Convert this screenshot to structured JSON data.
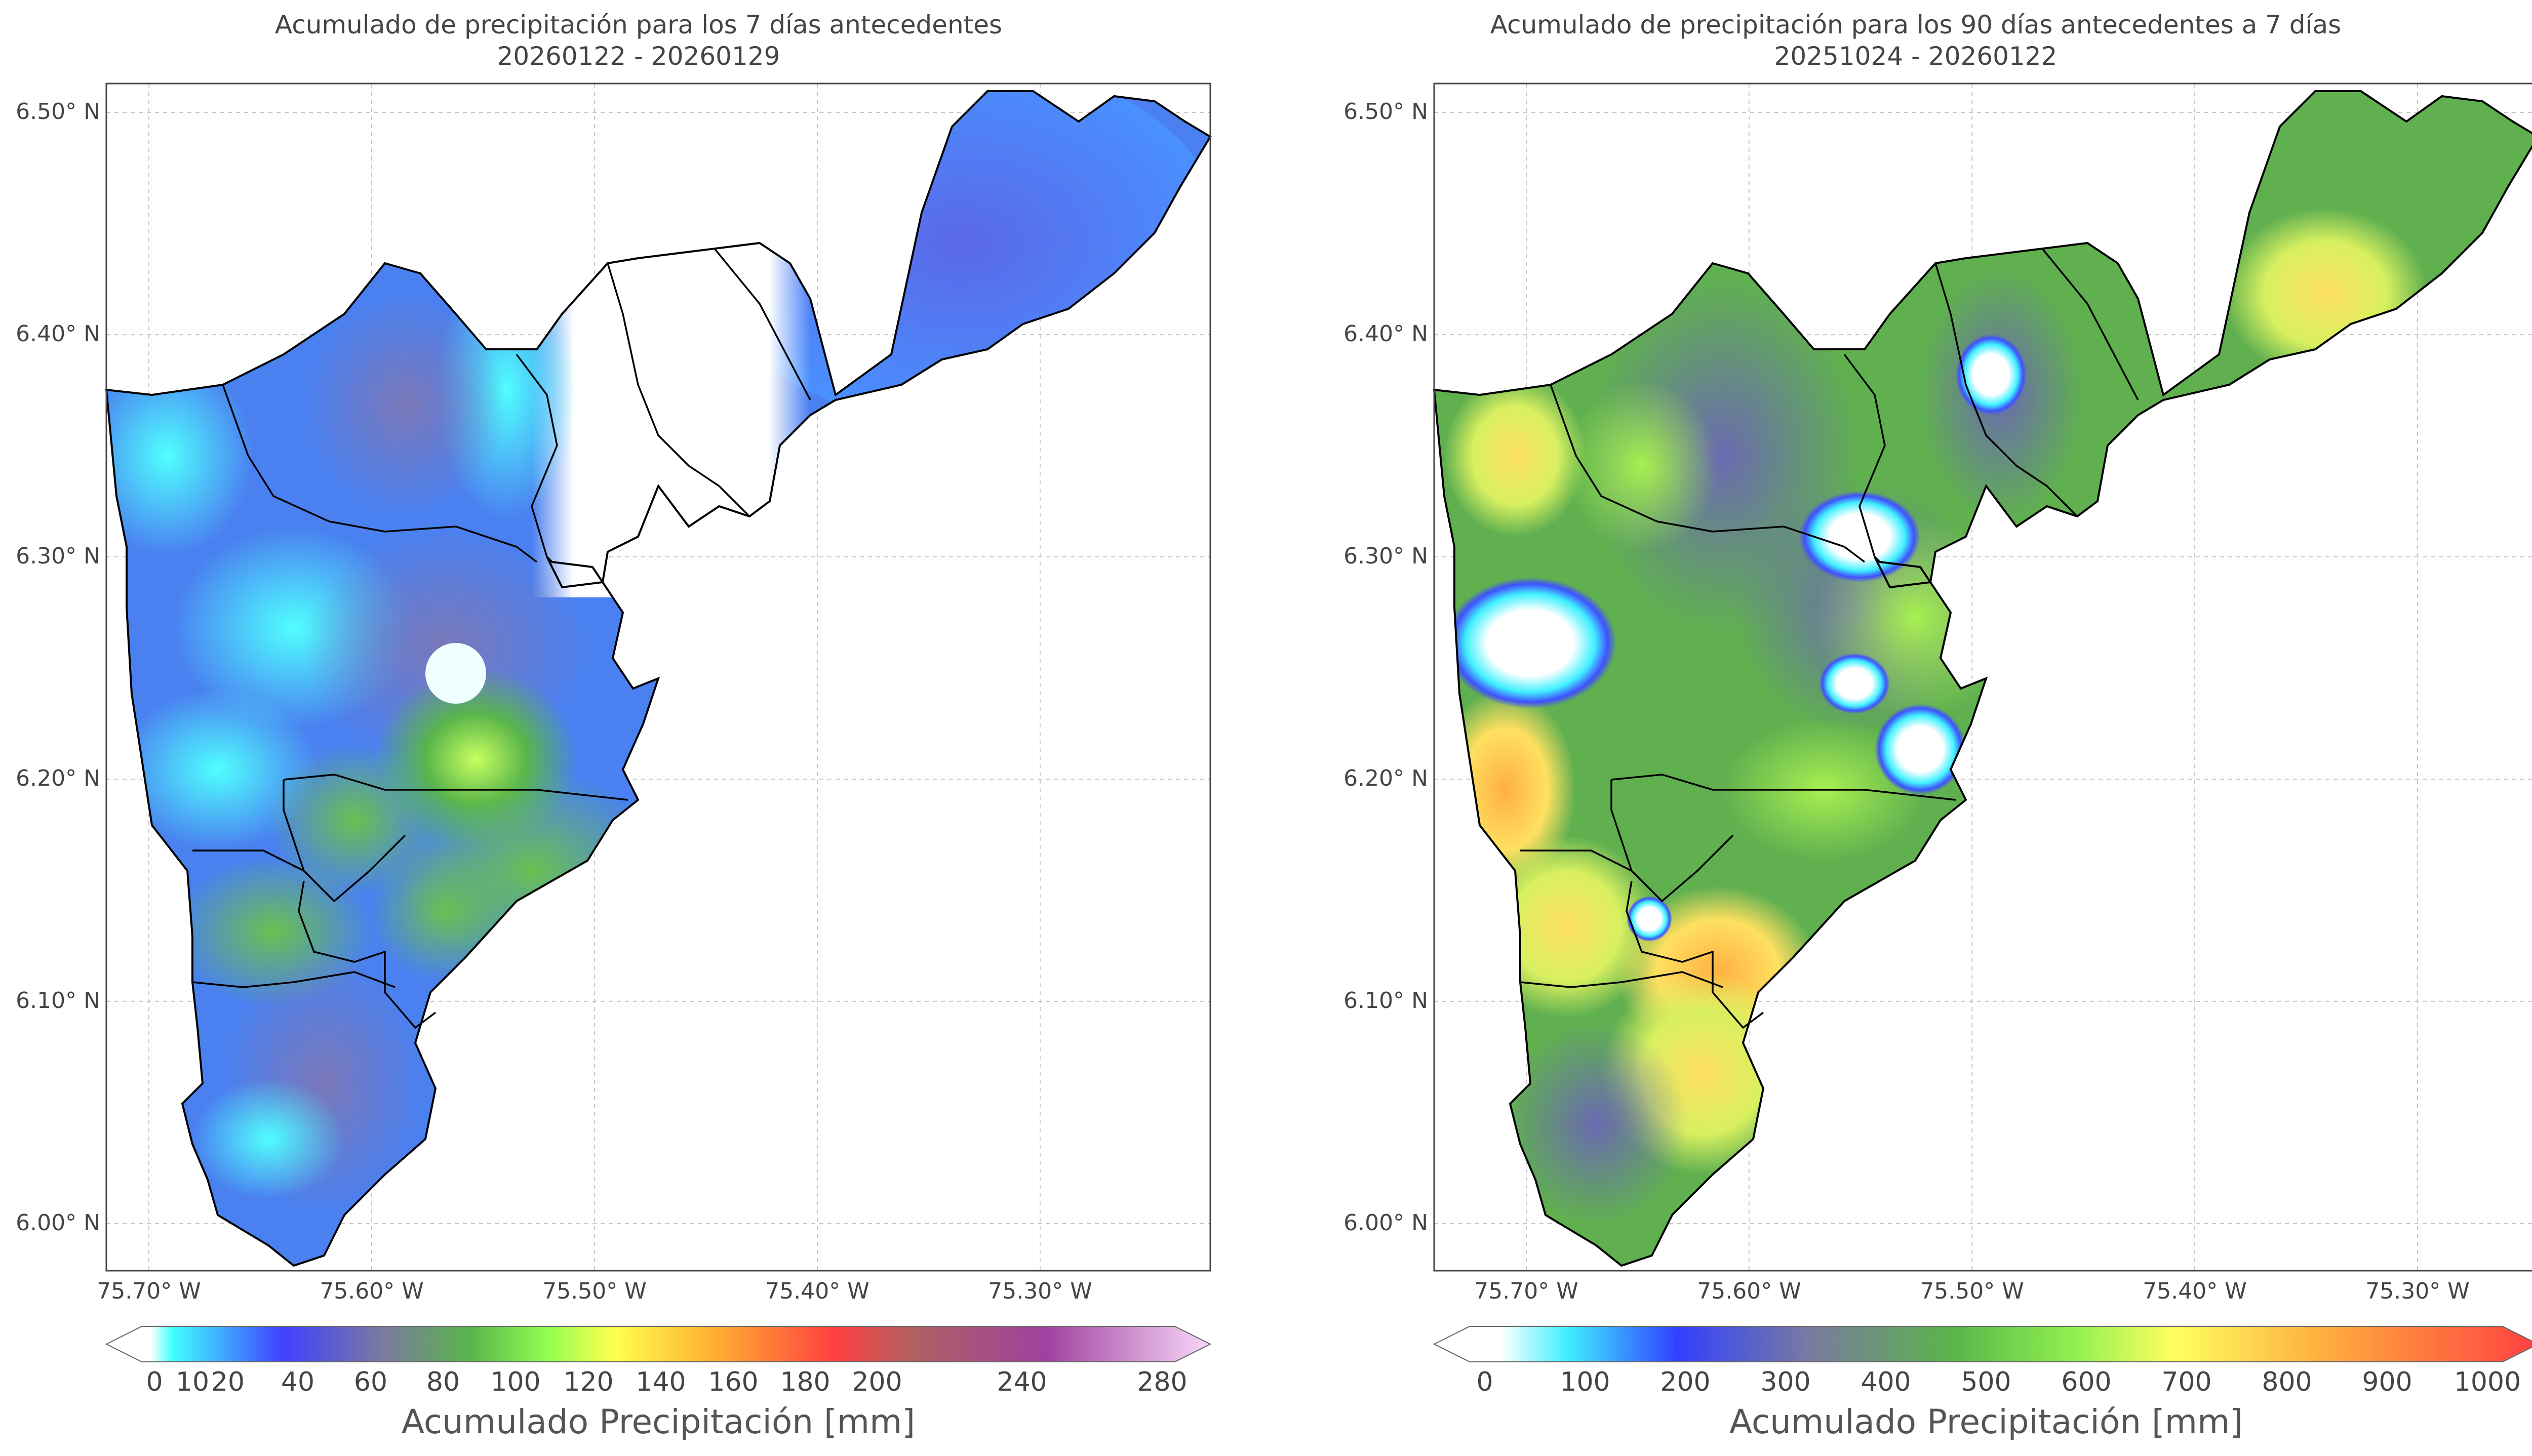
{
  "panels": [
    {
      "id": "left",
      "title_line1": "Acumulado de precipitación para los 7 días antecedentes",
      "title_line2": "20260122 - 20260129",
      "lat_ticks": [
        "6.50° N",
        "6.40° N",
        "6.30° N",
        "6.20° N",
        "6.10° N",
        "6.00° N"
      ],
      "lon_ticks": [
        "75.70° W",
        "75.60° W",
        "75.50° W",
        "75.40° W",
        "75.30° W"
      ],
      "colorbar": {
        "ticks": [
          "0",
          "10",
          "20",
          "40",
          "60",
          "80",
          "100",
          "120",
          "140",
          "160",
          "180",
          "200",
          "240",
          "280"
        ],
        "label": "Acumulado Precipitación [mm]",
        "colors": [
          "#ffffff",
          "#40ffff",
          "#4040ff",
          "#7a7aa0",
          "#5ab54a",
          "#c8ff60",
          "#ffff50",
          "#ffb030",
          "#ff5050",
          "#b06060",
          "#a040a0",
          "#f8d8f8"
        ]
      }
    },
    {
      "id": "right",
      "title_line1": "Acumulado de precipitación para los 90 días antecedentes a 7 días",
      "title_line2": "20251024 - 20260122",
      "lat_ticks": [
        "6.50° N",
        "6.40° N",
        "6.30° N",
        "6.20° N",
        "6.10° N",
        "6.00° N"
      ],
      "lon_ticks": [
        "75.70° W",
        "75.60° W",
        "75.50° W",
        "75.40° W",
        "75.30° W"
      ],
      "colorbar": {
        "ticks": [
          "0",
          "100",
          "200",
          "300",
          "400",
          "500",
          "600",
          "700",
          "800",
          "900",
          "1000"
        ],
        "label": "Acumulado Precipitación [mm]",
        "colors": [
          "#ffffff",
          "#40ffff",
          "#4040ff",
          "#7a7aa0",
          "#5ab54a",
          "#90ff50",
          "#ffff60",
          "#ffb040",
          "#ff4040"
        ]
      }
    }
  ],
  "map_colors": {
    "outline": "#000000",
    "grid": "#c8c8c8",
    "frame": "#444444"
  }
}
